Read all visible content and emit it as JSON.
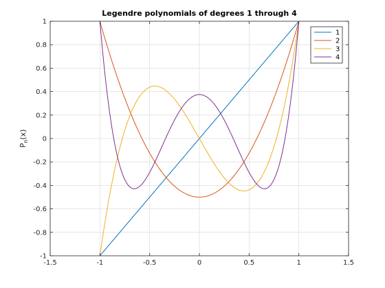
{
  "chart_data": {
    "type": "line",
    "title": "Legendre polynomials of degrees 1 through 4",
    "xlabel": "",
    "ylabel": "P",
    "ylabel_sub": "n",
    "ylabel_suffix": "(x)",
    "xlim": [
      -1.5,
      1.5
    ],
    "ylim": [
      -1,
      1
    ],
    "xticks": [
      -1.5,
      -1,
      -0.5,
      0,
      0.5,
      1,
      1.5
    ],
    "yticks": [
      -1,
      -0.8,
      -0.6,
      -0.4,
      -0.2,
      0,
      0.2,
      0.4,
      0.6,
      0.8,
      1
    ],
    "xtick_labels": [
      "-1.5",
      "-1",
      "-0.5",
      "0",
      "0.5",
      "1",
      "1.5"
    ],
    "ytick_labels": [
      "-1",
      "-0.8",
      "-0.6",
      "-0.4",
      "-0.2",
      "0",
      "0.2",
      "0.4",
      "0.6",
      "0.8",
      "1"
    ],
    "grid": true,
    "legend_position": "top-right",
    "x": [
      -1,
      -0.9,
      -0.8,
      -0.7,
      -0.6,
      -0.5,
      -0.4,
      -0.3,
      -0.2,
      -0.1,
      0,
      0.1,
      0.2,
      0.3,
      0.4,
      0.5,
      0.6,
      0.7,
      0.8,
      0.9,
      1
    ],
    "series": [
      {
        "name": "1",
        "color": "#0072bd",
        "values": [
          -1,
          -0.9,
          -0.8,
          -0.7,
          -0.6,
          -0.5,
          -0.4,
          -0.3,
          -0.2,
          -0.1,
          0,
          0.1,
          0.2,
          0.3,
          0.4,
          0.5,
          0.6,
          0.7,
          0.8,
          0.9,
          1
        ]
      },
      {
        "name": "2",
        "color": "#d95319",
        "values": [
          1,
          0.715,
          0.46,
          0.235,
          0.04,
          -0.125,
          -0.26,
          -0.365,
          -0.44,
          -0.485,
          -0.5,
          -0.485,
          -0.44,
          -0.365,
          -0.26,
          -0.125,
          0.04,
          0.235,
          0.46,
          0.715,
          1
        ]
      },
      {
        "name": "3",
        "color": "#edb120",
        "values": [
          -1,
          -0.4725,
          -0.08,
          0.1925,
          0.36,
          0.4375,
          0.44,
          0.3825,
          0.28,
          0.1475,
          0,
          -0.1475,
          -0.28,
          -0.3825,
          -0.44,
          -0.4375,
          -0.36,
          -0.1925,
          0.08,
          0.4725,
          1
        ]
      },
      {
        "name": "4",
        "color": "#7e2f8e",
        "values": [
          1,
          0.2079,
          -0.233,
          -0.4121,
          -0.408,
          -0.2891,
          -0.113,
          0.0729,
          0.232,
          0.3379,
          0.375,
          0.3379,
          0.232,
          0.0729,
          -0.113,
          -0.2891,
          -0.408,
          -0.4121,
          -0.233,
          0.2079,
          1
        ]
      }
    ]
  }
}
